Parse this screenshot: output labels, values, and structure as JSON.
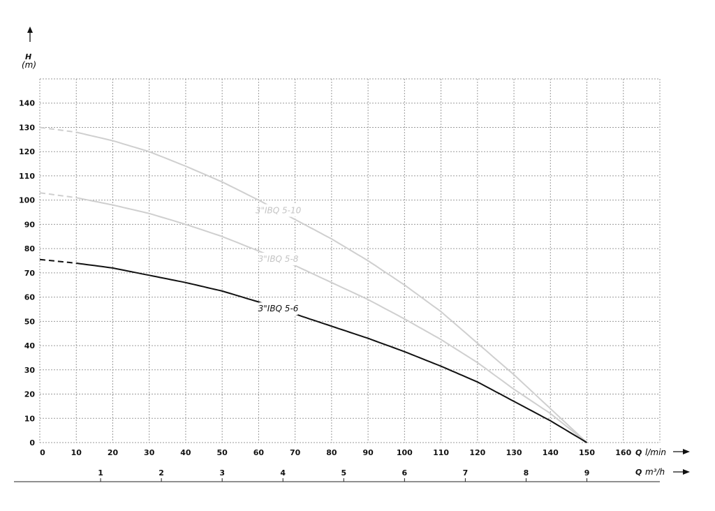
{
  "chart_data": {
    "type": "line",
    "title": "",
    "ylabel": "H",
    "yunit": "(m)",
    "xlabel_q": "Q",
    "xunit_lmin": "l/min",
    "xunit_m3h": "m³/h",
    "xlim": [
      0,
      170
    ],
    "ylim": [
      0,
      150
    ],
    "x_ticks": [
      0,
      10,
      20,
      30,
      40,
      50,
      60,
      70,
      80,
      90,
      100,
      110,
      120,
      130,
      140,
      150,
      160
    ],
    "y_ticks": [
      0,
      10,
      20,
      30,
      40,
      50,
      60,
      70,
      80,
      90,
      100,
      110,
      120,
      130,
      140
    ],
    "x2_ticks": [
      1,
      2,
      3,
      4,
      5,
      6,
      7,
      8,
      9
    ],
    "grid": true,
    "series": [
      {
        "name": "3\"IBQ 5-10",
        "color": "#cfcfcf",
        "dashed_until": 10,
        "label_at": 65,
        "x": [
          0,
          10,
          20,
          30,
          40,
          50,
          60,
          70,
          80,
          90,
          100,
          110,
          120,
          130,
          140,
          150
        ],
        "y": [
          130,
          128,
          124.5,
          120,
          114,
          107.5,
          100,
          92,
          84,
          75,
          65,
          54,
          41,
          28,
          14,
          0
        ]
      },
      {
        "name": "3\"IBQ 5-8",
        "color": "#cfcfcf",
        "dashed_until": 10,
        "label_at": 65,
        "x": [
          0,
          10,
          20,
          30,
          40,
          50,
          60,
          70,
          80,
          90,
          100,
          110,
          120,
          130,
          140,
          150
        ],
        "y": [
          103,
          101,
          98,
          94.5,
          90,
          85,
          79,
          73,
          66,
          59,
          51,
          42.5,
          33,
          22,
          12,
          0
        ]
      },
      {
        "name": "3\"IBQ 5-6",
        "color": "#111111",
        "dashed_until": 10,
        "label_at": 65,
        "x": [
          0,
          10,
          20,
          30,
          40,
          50,
          60,
          70,
          80,
          90,
          100,
          110,
          120,
          130,
          140,
          150
        ],
        "y": [
          75.5,
          74,
          72,
          69,
          66,
          62.5,
          58,
          53,
          48,
          43,
          37.5,
          31.5,
          25,
          17,
          9,
          0
        ]
      }
    ]
  }
}
